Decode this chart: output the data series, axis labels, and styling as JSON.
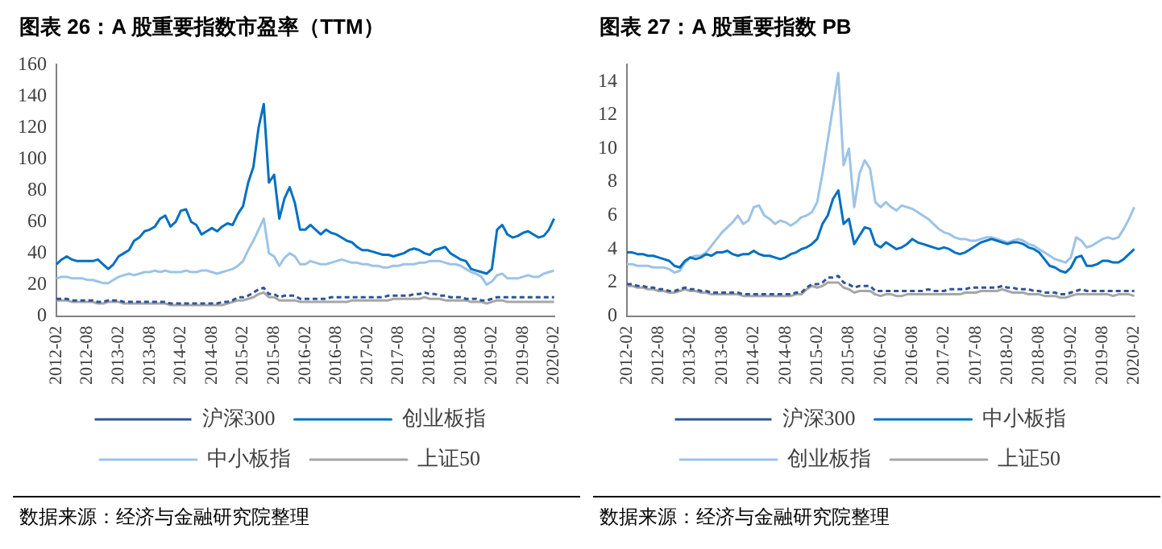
{
  "chart_data": [
    {
      "type": "line",
      "title": "图表 26：A 股重要指数市盈率（TTM）",
      "categories": [
        "2012-02",
        null,
        null,
        null,
        null,
        null,
        "2012-08",
        null,
        null,
        null,
        null,
        null,
        "2013-02",
        null,
        null,
        null,
        null,
        null,
        "2013-08",
        null,
        null,
        null,
        null,
        null,
        "2014-02",
        null,
        null,
        null,
        null,
        null,
        "2014-08",
        null,
        null,
        null,
        null,
        null,
        "2015-02",
        null,
        null,
        null,
        null,
        null,
        "2015-08",
        null,
        null,
        null,
        null,
        null,
        "2016-02",
        null,
        null,
        null,
        null,
        null,
        "2016-08",
        null,
        null,
        null,
        null,
        null,
        "2017-02",
        null,
        null,
        null,
        null,
        null,
        "2017-08",
        null,
        null,
        null,
        null,
        null,
        "2018-02",
        null,
        null,
        null,
        null,
        null,
        "2018-08",
        null,
        null,
        null,
        null,
        null,
        "2019-02",
        null,
        null,
        null,
        null,
        null,
        "2019-08",
        null,
        null,
        null,
        null,
        null,
        "2020-02"
      ],
      "ylim": [
        0,
        160
      ],
      "yticks": [
        0,
        20,
        40,
        60,
        80,
        100,
        120,
        140,
        160
      ],
      "grid": false,
      "marker": "none",
      "legend": "bottom",
      "annotations": [
        "数据来源：经济与金融研究院整理"
      ],
      "series": [
        {
          "name": "沪深300",
          "color": "#2e5597",
          "line_style": "dashed",
          "values": [
            11,
            11,
            11,
            10,
            10,
            10,
            10,
            10,
            9,
            9,
            10,
            10,
            10,
            9,
            9,
            9,
            9,
            9,
            9,
            9,
            9,
            9,
            8,
            8,
            8,
            8,
            8,
            8,
            8,
            8,
            8,
            8,
            9,
            9,
            10,
            12,
            12,
            13,
            15,
            17,
            18,
            14,
            14,
            12,
            13,
            13,
            13,
            11,
            11,
            11,
            11,
            11,
            11,
            12,
            12,
            12,
            12,
            12,
            12,
            12,
            12,
            12,
            12,
            12,
            13,
            13,
            13,
            13,
            13,
            14,
            14,
            15,
            14,
            14,
            13,
            13,
            12,
            12,
            12,
            11,
            11,
            11,
            10,
            10,
            11,
            12,
            12,
            12,
            12,
            12,
            12,
            12,
            12,
            12,
            12,
            12,
            12
          ]
        },
        {
          "name": "创业板指",
          "color": "#0070c0",
          "line_style": "solid",
          "values": [
            33,
            36,
            38,
            36,
            35,
            35,
            35,
            35,
            36,
            33,
            30,
            33,
            38,
            40,
            42,
            48,
            50,
            54,
            55,
            57,
            62,
            64,
            57,
            60,
            67,
            68,
            60,
            58,
            52,
            54,
            56,
            54,
            57,
            59,
            58,
            65,
            70,
            85,
            95,
            120,
            135,
            85,
            90,
            62,
            75,
            82,
            72,
            55,
            55,
            58,
            55,
            52,
            55,
            53,
            52,
            50,
            48,
            47,
            44,
            42,
            42,
            41,
            40,
            39,
            39,
            38,
            39,
            40,
            42,
            43,
            42,
            40,
            39,
            42,
            43,
            44,
            40,
            38,
            36,
            35,
            30,
            29,
            28,
            27,
            30,
            55,
            58,
            52,
            50,
            51,
            53,
            54,
            52,
            50,
            51,
            55,
            62
          ]
        },
        {
          "name": "中小板指",
          "color": "#9dc3e6",
          "line_style": "solid",
          "values": [
            24,
            25,
            25,
            24,
            24,
            24,
            23,
            23,
            22,
            21,
            21,
            23,
            25,
            26,
            27,
            26,
            27,
            28,
            28,
            29,
            28,
            29,
            28,
            28,
            28,
            29,
            28,
            28,
            29,
            29,
            28,
            27,
            28,
            29,
            30,
            32,
            35,
            42,
            48,
            55,
            62,
            40,
            38,
            32,
            37,
            40,
            38,
            33,
            33,
            35,
            34,
            33,
            33,
            34,
            35,
            36,
            35,
            34,
            34,
            33,
            33,
            32,
            32,
            31,
            31,
            32,
            32,
            33,
            33,
            33,
            34,
            34,
            35,
            35,
            35,
            34,
            33,
            33,
            32,
            30,
            28,
            27,
            25,
            20,
            22,
            26,
            27,
            24,
            24,
            24,
            25,
            26,
            25,
            25,
            27,
            28,
            29
          ]
        },
        {
          "name": "上证50",
          "color": "#a6a6a6",
          "line_style": "solid",
          "values": [
            10,
            10,
            10,
            9,
            9,
            9,
            9,
            9,
            8,
            8,
            9,
            9,
            9,
            8,
            8,
            8,
            8,
            8,
            8,
            8,
            8,
            8,
            7,
            7,
            7,
            7,
            7,
            7,
            7,
            7,
            7,
            7,
            7,
            8,
            9,
            10,
            10,
            11,
            12,
            14,
            15,
            12,
            12,
            10,
            10,
            10,
            10,
            9,
            9,
            9,
            9,
            9,
            9,
            9,
            9,
            9,
            9,
            10,
            10,
            10,
            10,
            10,
            10,
            10,
            10,
            11,
            11,
            11,
            11,
            11,
            11,
            12,
            11,
            11,
            11,
            10,
            10,
            10,
            10,
            10,
            9,
            9,
            9,
            8,
            9,
            10,
            10,
            9,
            9,
            9,
            9,
            9,
            9,
            9,
            9,
            9,
            9
          ]
        }
      ]
    },
    {
      "type": "line",
      "title": "图表 27：A 股重要指数 PB",
      "categories": [
        "2012-02",
        null,
        null,
        null,
        null,
        null,
        "2012-08",
        null,
        null,
        null,
        null,
        null,
        "2013-02",
        null,
        null,
        null,
        null,
        null,
        "2013-08",
        null,
        null,
        null,
        null,
        null,
        "2014-02",
        null,
        null,
        null,
        null,
        null,
        "2014-08",
        null,
        null,
        null,
        null,
        null,
        "2015-02",
        null,
        null,
        null,
        null,
        null,
        "2015-08",
        null,
        null,
        null,
        null,
        null,
        "2016-02",
        null,
        null,
        null,
        null,
        null,
        "2016-08",
        null,
        null,
        null,
        null,
        null,
        "2017-02",
        null,
        null,
        null,
        null,
        null,
        "2017-08",
        null,
        null,
        null,
        null,
        null,
        "2018-02",
        null,
        null,
        null,
        null,
        null,
        "2018-08",
        null,
        null,
        null,
        null,
        null,
        "2019-02",
        null,
        null,
        null,
        null,
        null,
        "2019-08",
        null,
        null,
        null,
        null,
        null,
        "2020-02"
      ],
      "ylim": [
        0,
        15
      ],
      "yticks": [
        0,
        2,
        4,
        6,
        8,
        10,
        12,
        14
      ],
      "grid": false,
      "marker": "none",
      "legend": "bottom",
      "annotations": [
        "数据来源：经济与金融研究院整理"
      ],
      "series": [
        {
          "name": "沪深300",
          "color": "#2e5597",
          "line_style": "dashed",
          "values": [
            1.9,
            1.9,
            1.8,
            1.8,
            1.7,
            1.7,
            1.6,
            1.6,
            1.5,
            1.5,
            1.6,
            1.7,
            1.6,
            1.6,
            1.5,
            1.5,
            1.4,
            1.4,
            1.4,
            1.4,
            1.4,
            1.4,
            1.3,
            1.3,
            1.3,
            1.3,
            1.3,
            1.3,
            1.3,
            1.3,
            1.3,
            1.3,
            1.4,
            1.4,
            1.7,
            1.9,
            1.9,
            2.0,
            2.3,
            2.3,
            2.4,
            2.0,
            1.9,
            1.7,
            1.8,
            1.8,
            1.8,
            1.5,
            1.5,
            1.5,
            1.5,
            1.5,
            1.5,
            1.5,
            1.5,
            1.5,
            1.5,
            1.6,
            1.5,
            1.5,
            1.5,
            1.6,
            1.6,
            1.6,
            1.6,
            1.7,
            1.7,
            1.7,
            1.7,
            1.7,
            1.7,
            1.8,
            1.7,
            1.7,
            1.6,
            1.6,
            1.6,
            1.5,
            1.5,
            1.4,
            1.4,
            1.4,
            1.3,
            1.3,
            1.4,
            1.5,
            1.6,
            1.5,
            1.5,
            1.5,
            1.5,
            1.5,
            1.5,
            1.5,
            1.5,
            1.5,
            1.5
          ]
        },
        {
          "name": "中小板指",
          "color": "#0070c0",
          "line_style": "solid",
          "values": [
            3.8,
            3.8,
            3.7,
            3.7,
            3.6,
            3.6,
            3.5,
            3.4,
            3.3,
            3.0,
            2.9,
            3.3,
            3.5,
            3.4,
            3.5,
            3.7,
            3.6,
            3.8,
            3.8,
            3.9,
            3.7,
            3.6,
            3.7,
            3.7,
            3.9,
            3.7,
            3.6,
            3.6,
            3.5,
            3.4,
            3.5,
            3.7,
            3.8,
            4.0,
            4.1,
            4.3,
            4.6,
            5.5,
            6.0,
            7.0,
            7.5,
            5.5,
            5.8,
            4.3,
            4.8,
            5.3,
            5.2,
            4.3,
            4.1,
            4.4,
            4.2,
            4.0,
            4.1,
            4.3,
            4.6,
            4.4,
            4.3,
            4.2,
            4.1,
            4.0,
            4.1,
            4.0,
            3.8,
            3.7,
            3.8,
            4.0,
            4.2,
            4.4,
            4.5,
            4.6,
            4.5,
            4.4,
            4.3,
            4.4,
            4.4,
            4.3,
            4.1,
            4.0,
            3.8,
            3.4,
            3.0,
            2.9,
            2.7,
            2.6,
            2.9,
            3.5,
            3.6,
            3.0,
            3.0,
            3.1,
            3.3,
            3.3,
            3.2,
            3.2,
            3.4,
            3.7,
            4.0
          ]
        },
        {
          "name": "创业板指",
          "color": "#9dc3e6",
          "line_style": "solid",
          "values": [
            3.1,
            3.1,
            3.0,
            3.0,
            3.0,
            2.9,
            2.9,
            2.9,
            2.8,
            2.6,
            2.7,
            3.2,
            3.5,
            3.6,
            3.6,
            3.8,
            4.2,
            4.6,
            5.0,
            5.3,
            5.6,
            6.0,
            5.5,
            5.7,
            6.5,
            6.6,
            6.0,
            5.8,
            5.5,
            5.7,
            5.6,
            5.4,
            5.6,
            5.9,
            6.0,
            6.2,
            6.8,
            8.5,
            10.5,
            12.5,
            14.5,
            9.0,
            10.0,
            6.5,
            8.5,
            9.3,
            8.8,
            6.8,
            6.5,
            6.8,
            6.5,
            6.3,
            6.6,
            6.5,
            6.4,
            6.2,
            6.0,
            5.8,
            5.5,
            5.2,
            5.0,
            4.9,
            4.7,
            4.6,
            4.6,
            4.5,
            4.5,
            4.6,
            4.7,
            4.7,
            4.6,
            4.5,
            4.4,
            4.5,
            4.6,
            4.5,
            4.3,
            4.2,
            4.0,
            3.8,
            3.6,
            3.4,
            3.3,
            3.2,
            3.5,
            4.7,
            4.5,
            4.1,
            4.2,
            4.4,
            4.6,
            4.7,
            4.6,
            4.7,
            5.2,
            5.8,
            6.5
          ]
        },
        {
          "name": "上证50",
          "color": "#a6a6a6",
          "line_style": "solid",
          "values": [
            1.8,
            1.8,
            1.7,
            1.7,
            1.6,
            1.6,
            1.5,
            1.5,
            1.4,
            1.4,
            1.5,
            1.6,
            1.5,
            1.5,
            1.4,
            1.4,
            1.3,
            1.3,
            1.3,
            1.3,
            1.3,
            1.3,
            1.2,
            1.2,
            1.2,
            1.2,
            1.2,
            1.2,
            1.2,
            1.2,
            1.2,
            1.2,
            1.3,
            1.3,
            1.6,
            1.8,
            1.7,
            1.8,
            2.0,
            2.0,
            2.0,
            1.7,
            1.6,
            1.4,
            1.5,
            1.5,
            1.5,
            1.3,
            1.2,
            1.3,
            1.3,
            1.2,
            1.2,
            1.3,
            1.3,
            1.3,
            1.3,
            1.3,
            1.3,
            1.3,
            1.3,
            1.3,
            1.3,
            1.3,
            1.4,
            1.4,
            1.4,
            1.5,
            1.5,
            1.5,
            1.5,
            1.6,
            1.5,
            1.4,
            1.4,
            1.4,
            1.3,
            1.3,
            1.3,
            1.2,
            1.2,
            1.2,
            1.1,
            1.1,
            1.2,
            1.3,
            1.3,
            1.3,
            1.3,
            1.3,
            1.3,
            1.3,
            1.2,
            1.3,
            1.3,
            1.3,
            1.2
          ]
        }
      ]
    }
  ]
}
